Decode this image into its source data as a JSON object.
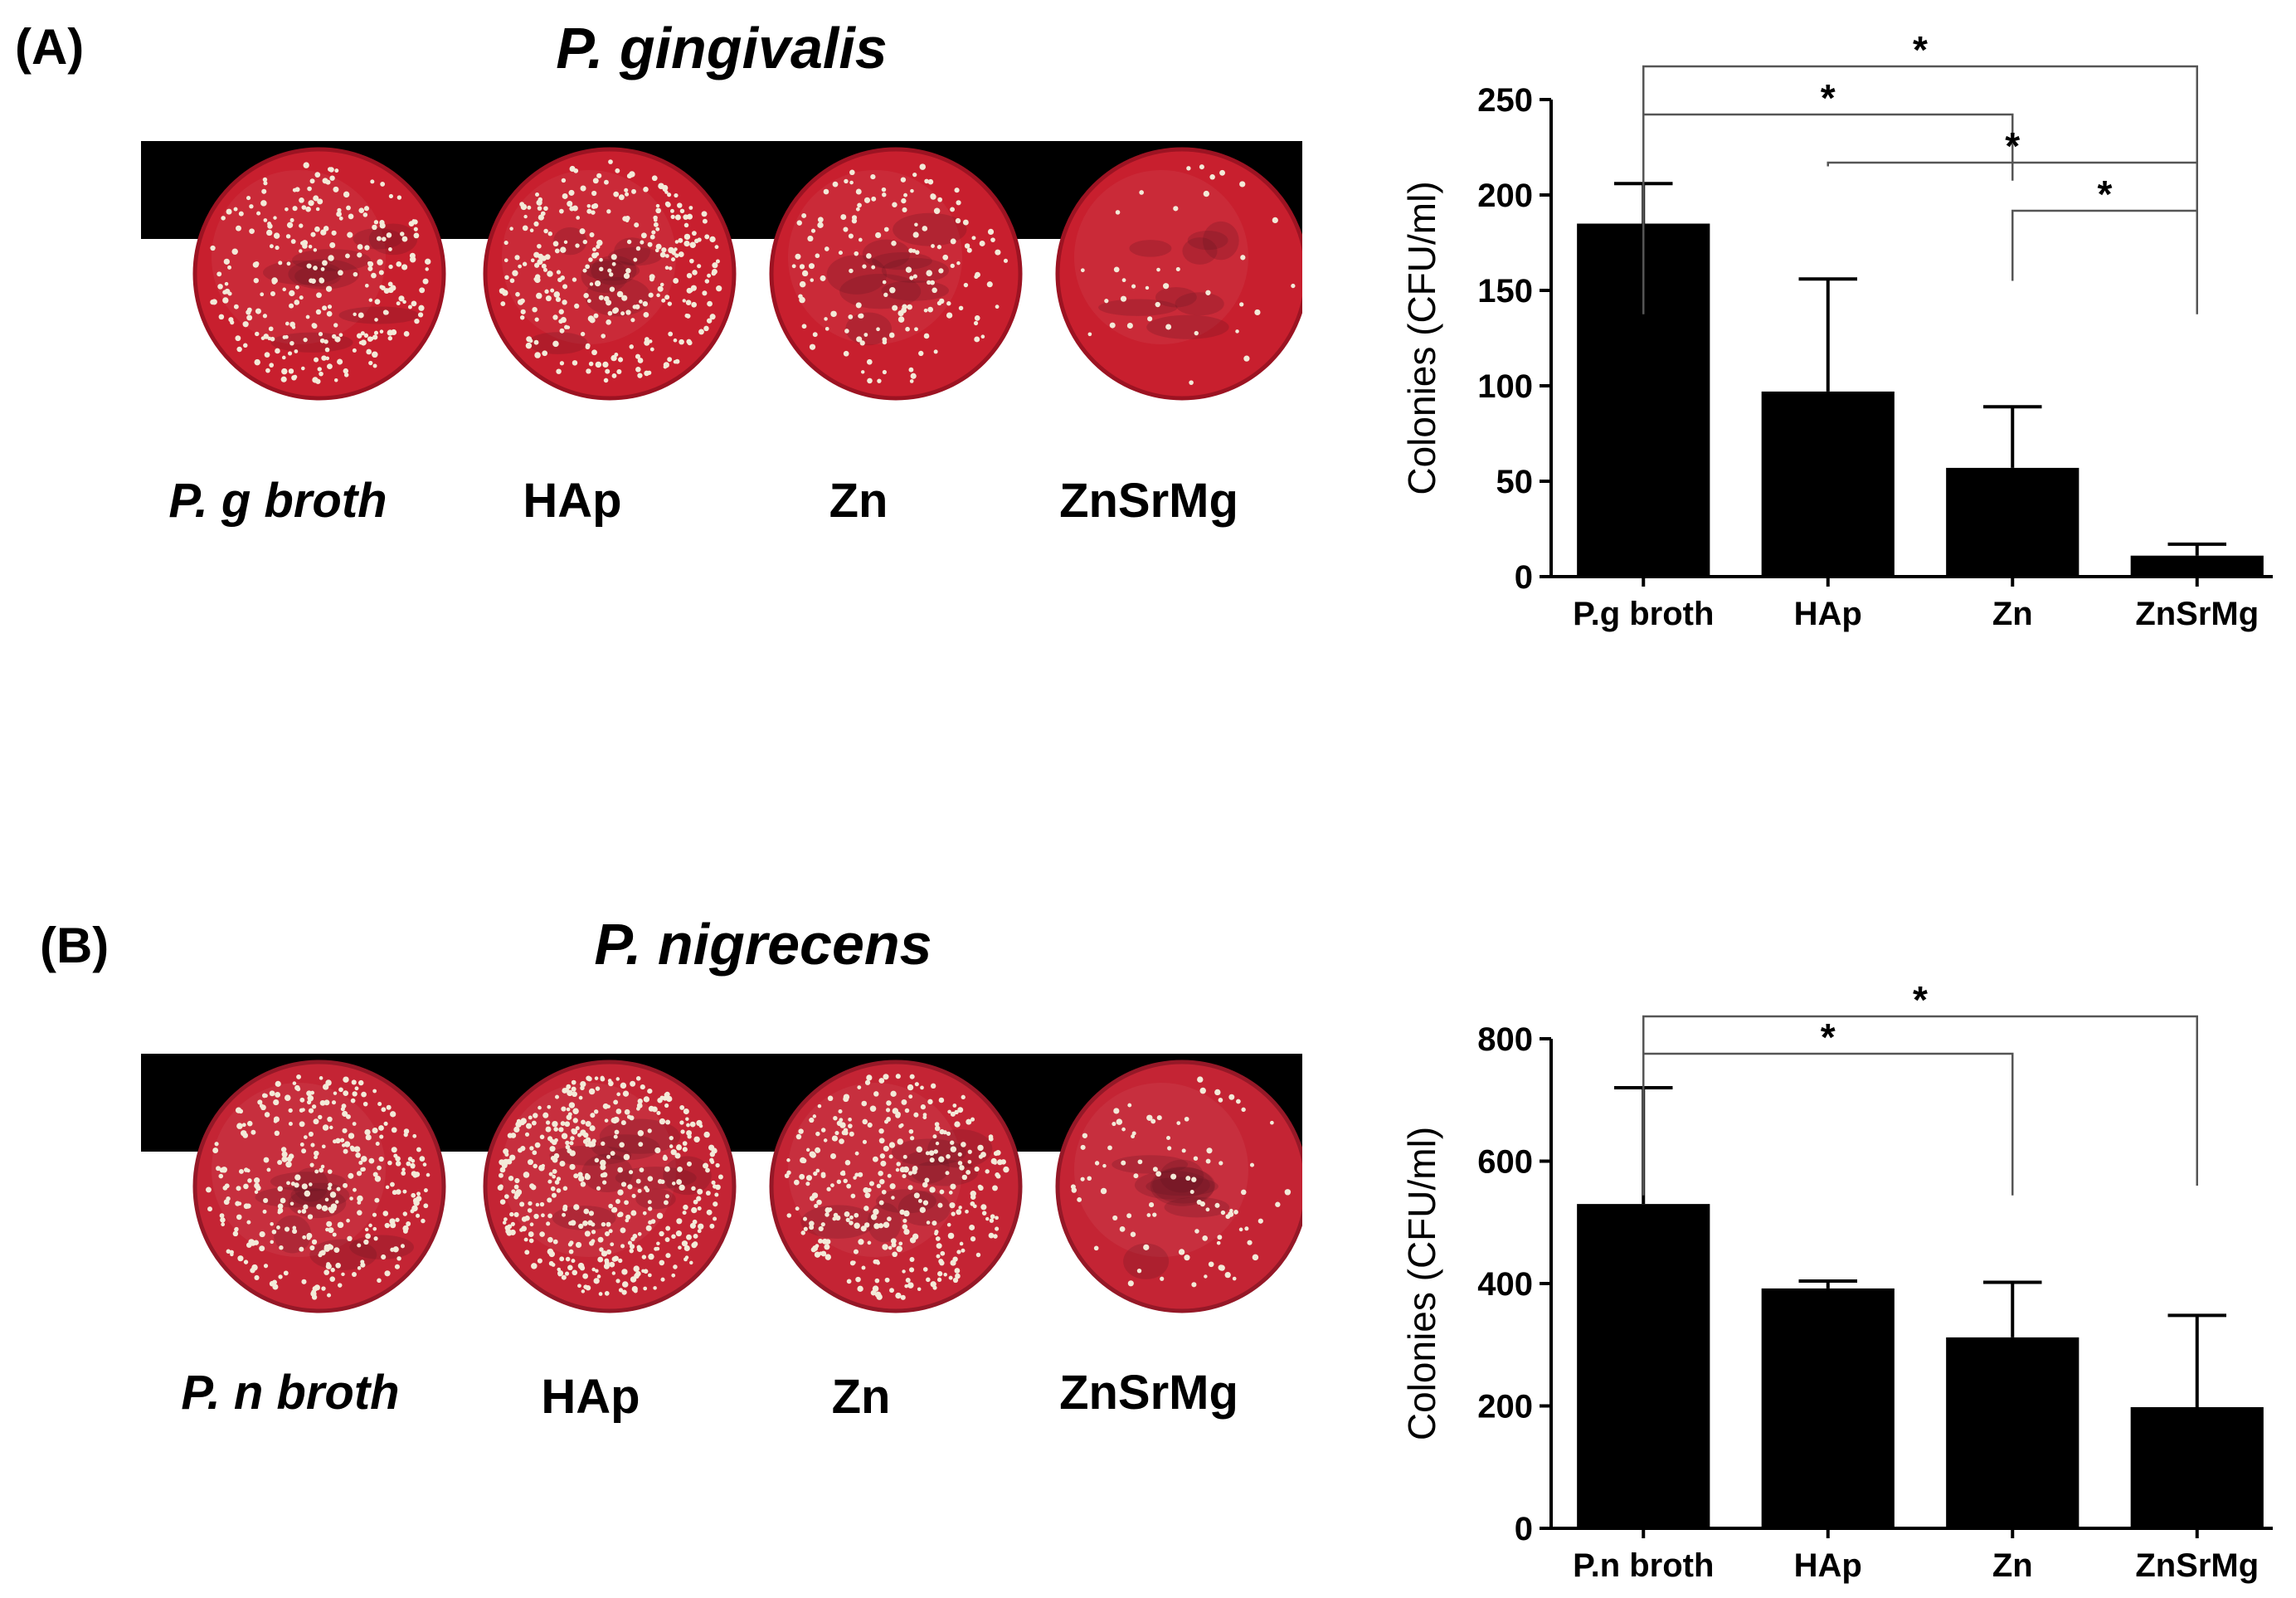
{
  "panels": [
    {
      "letter": "(A)",
      "species": "P. gingivalis",
      "plate_labels": [
        "P. g broth",
        "HAp",
        "Zn",
        "ZnSrMg"
      ],
      "colors": {
        "plate": "#c81f2e",
        "plate_edge": "#9c1322",
        "band": "#000000",
        "bar": "#000000"
      }
    },
    {
      "letter": "(B)",
      "species": "P. nigrecens",
      "plate_labels": [
        "P. n broth",
        "HAp",
        "Zn",
        "ZnSrMg"
      ],
      "colors": {
        "plate": "#c42434",
        "plate_edge": "#951827",
        "band": "#000000",
        "bar": "#000000"
      }
    }
  ],
  "chart_data": [
    {
      "type": "bar",
      "categories": [
        "P.g broth",
        "HAp",
        "Zn",
        "ZnSrMg"
      ],
      "values": [
        185,
        97,
        57,
        11
      ],
      "error": [
        21,
        59,
        32,
        6
      ],
      "ylabel": "Colonies  (CFU/ml)",
      "ylim": [
        0,
        250
      ],
      "yticks": [
        0,
        50,
        100,
        150,
        200,
        250
      ],
      "significance": [
        {
          "from": 0,
          "to": 3,
          "label": "*"
        },
        {
          "from": 0,
          "to": 2,
          "label": "*"
        },
        {
          "from": 1,
          "to": 3,
          "label": "*"
        },
        {
          "from": 2,
          "to": 3,
          "label": "*"
        }
      ]
    },
    {
      "type": "bar",
      "categories": [
        "P.n broth",
        "HAp",
        "Zn",
        "ZnSrMg"
      ],
      "values": [
        530,
        392,
        312,
        198
      ],
      "error": [
        190,
        12,
        90,
        150
      ],
      "ylabel": "Colonies  (CFU/ml)",
      "ylim": [
        0,
        800
      ],
      "yticks": [
        0,
        200,
        400,
        600,
        800
      ],
      "significance": [
        {
          "from": 0,
          "to": 3,
          "label": "*"
        },
        {
          "from": 0,
          "to": 2,
          "label": "*"
        }
      ]
    }
  ]
}
